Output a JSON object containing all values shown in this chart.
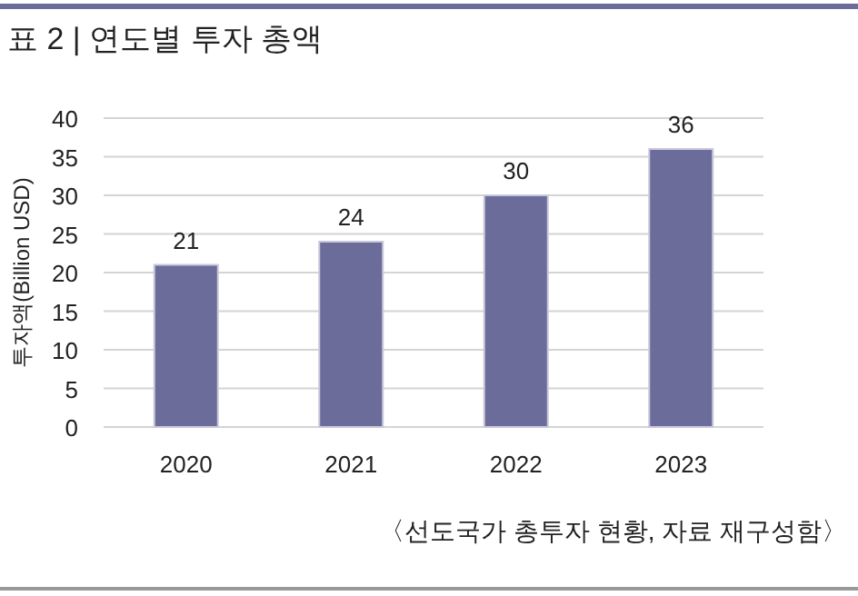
{
  "chart_data": {
    "type": "bar",
    "title": "표 2 | 연도별 투자 총액",
    "ylabel": "투자액(Billion USD)",
    "categories": [
      "2020",
      "2021",
      "2022",
      "2023"
    ],
    "series": [
      {
        "color": "#6b6c99",
        "values": [
          21,
          24,
          30,
          36
        ]
      }
    ],
    "ylim": [
      0,
      40
    ],
    "yticks": [
      0,
      5,
      10,
      15,
      20,
      25,
      30,
      35,
      40
    ],
    "grid": "y",
    "data_labels": true,
    "annotations": [
      "〈선도국가 총투자 현황, 자료 재구성함〉"
    ]
  }
}
